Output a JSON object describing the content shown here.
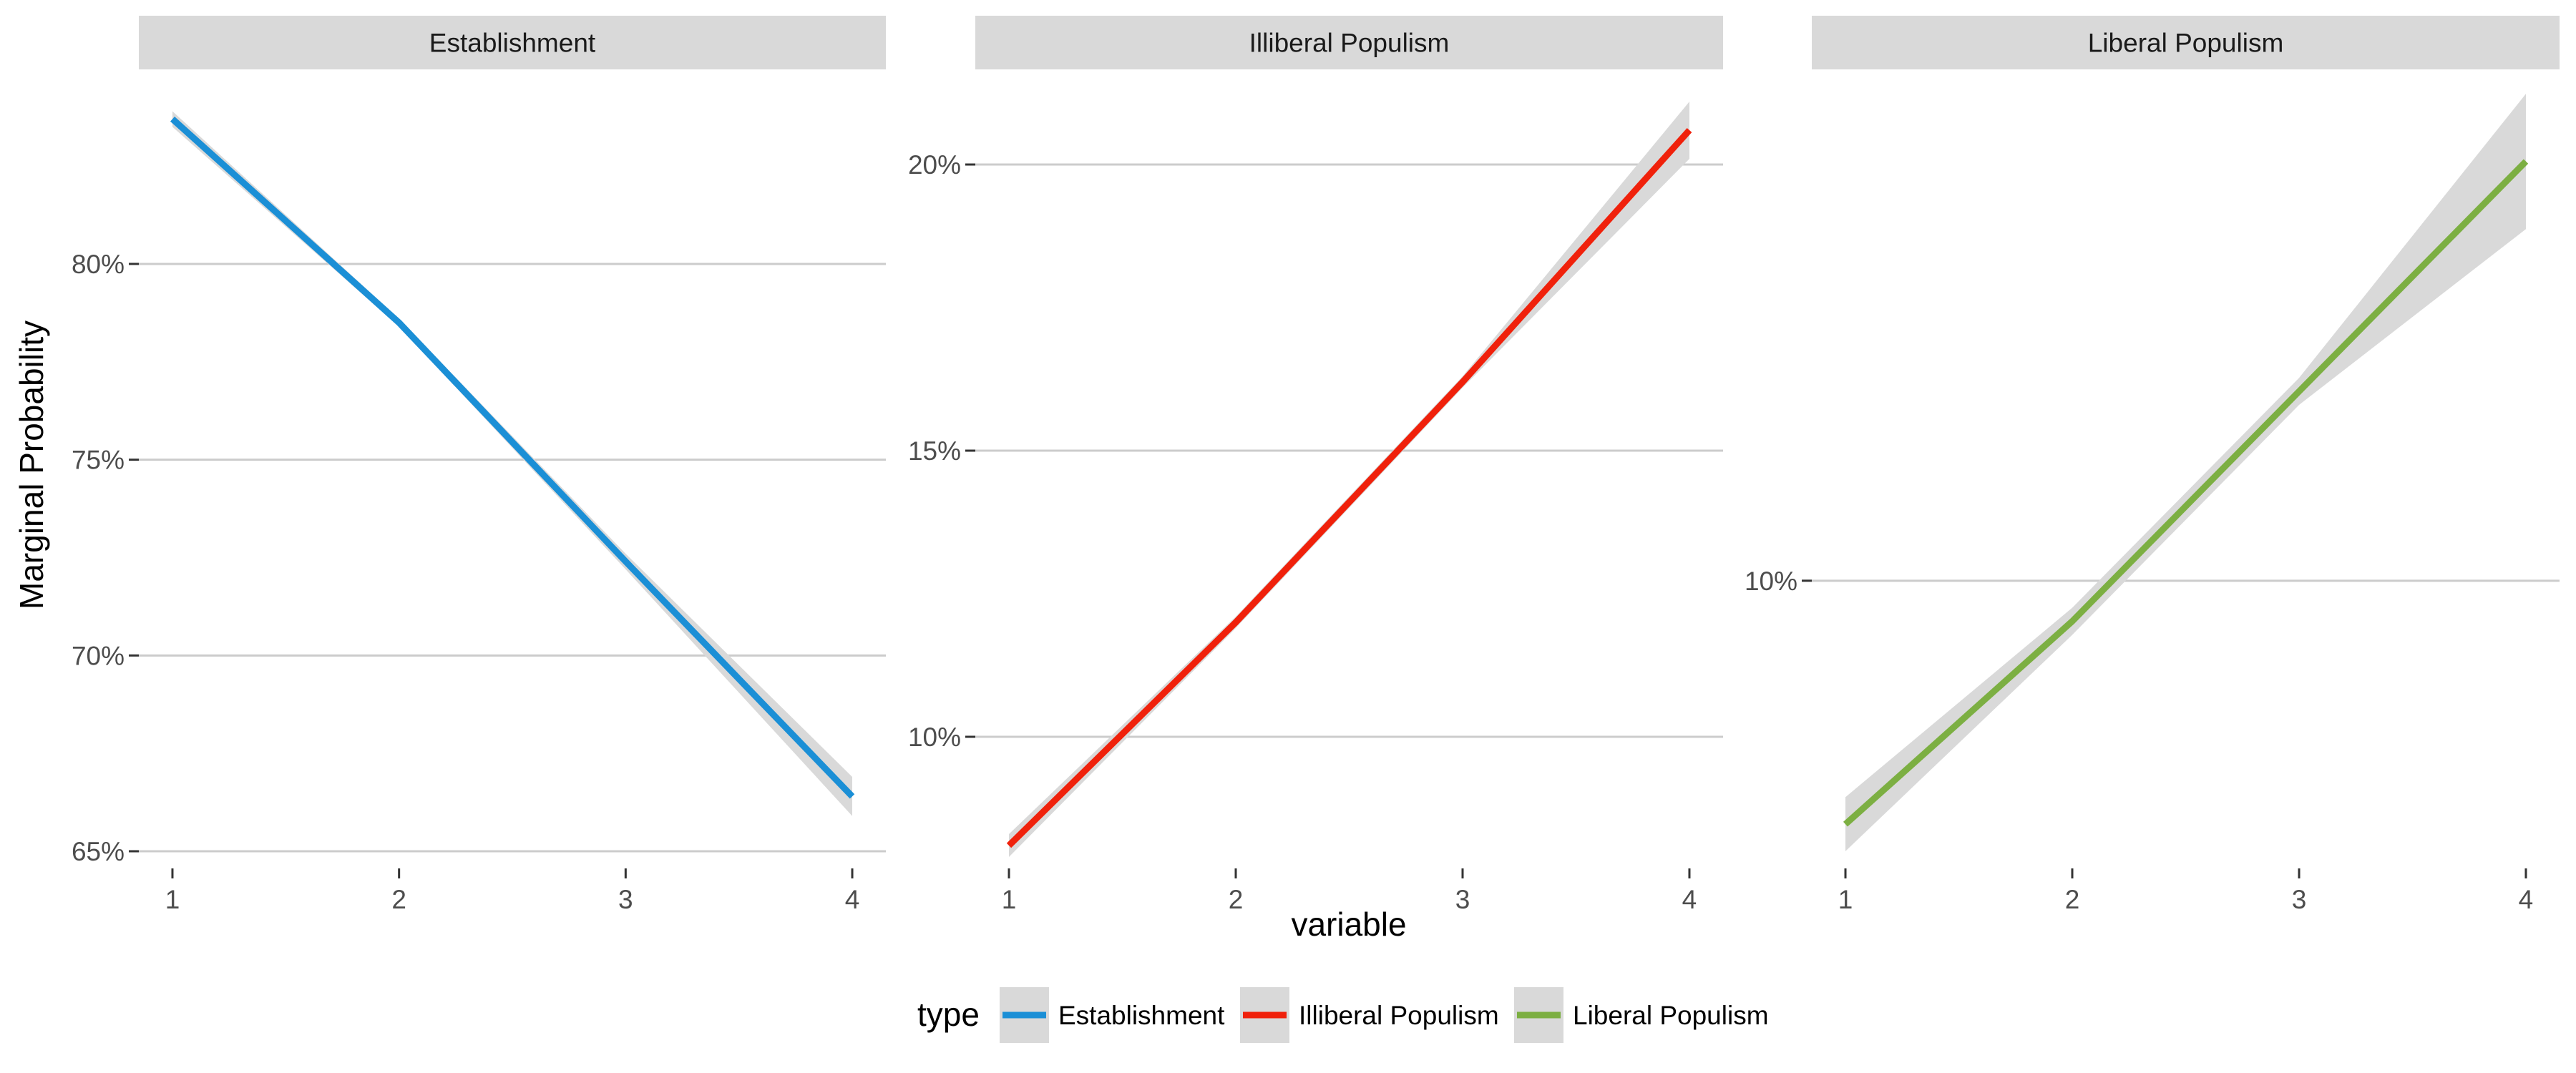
{
  "chart_data": [
    {
      "type": "line",
      "panel_title": "Establishment",
      "color": "#1B8FD6",
      "x": [
        1,
        2,
        3,
        4
      ],
      "y": [
        0.837,
        0.785,
        0.724,
        0.664
      ],
      "ci_lower": [
        0.835,
        0.784,
        0.722,
        0.659
      ],
      "ci_upper": [
        0.839,
        0.786,
        0.726,
        0.669
      ],
      "xlim": [
        1,
        4
      ],
      "ylim": [
        0.65,
        0.84
      ],
      "ytick_values": [
        0.65,
        0.7,
        0.75,
        0.8
      ],
      "ytick_labels": [
        "65%",
        "70%",
        "75%",
        "80%"
      ],
      "xtick_values": [
        1,
        2,
        3,
        4
      ],
      "xtick_labels": [
        "1",
        "2",
        "3",
        "4"
      ],
      "grid": true
    },
    {
      "type": "line",
      "panel_title": "Illiberal Populism",
      "color": "#F0210B",
      "x": [
        1,
        2,
        3,
        4
      ],
      "y": [
        0.081,
        0.12,
        0.162,
        0.206
      ],
      "ci_lower": [
        0.079,
        0.119,
        0.161,
        0.201
      ],
      "ci_upper": [
        0.083,
        0.121,
        0.163,
        0.211
      ],
      "xlim": [
        1,
        4
      ],
      "ylim": [
        0.08,
        0.21
      ],
      "ytick_values": [
        0.1,
        0.15,
        0.2
      ],
      "ytick_labels": [
        "10%",
        "15%",
        "20%"
      ],
      "xtick_values": [
        1,
        2,
        3,
        4
      ],
      "xtick_labels": [
        "1",
        "2",
        "3",
        "4"
      ],
      "grid": true
    },
    {
      "type": "line",
      "panel_title": "Liberal Populism",
      "color": "#7CAF42",
      "x": [
        1,
        2,
        3,
        4
      ],
      "y": [
        0.082,
        0.097,
        0.114,
        0.131
      ],
      "ci_lower": [
        0.08,
        0.096,
        0.113,
        0.126
      ],
      "ci_upper": [
        0.084,
        0.098,
        0.115,
        0.136
      ],
      "xlim": [
        1,
        4
      ],
      "ylim": [
        0.08,
        0.135
      ],
      "ytick_values": [
        0.1
      ],
      "ytick_labels": [
        "10%"
      ],
      "xtick_values": [
        1,
        2,
        3,
        4
      ],
      "xtick_labels": [
        "1",
        "2",
        "3",
        "4"
      ],
      "grid": true
    }
  ],
  "axes": {
    "xlabel": "variable",
    "ylabel": "Marginal Probability"
  },
  "legend": {
    "title": "type",
    "position": "bottom",
    "entries": [
      {
        "label": "Establishment",
        "color": "#1B8FD6"
      },
      {
        "label": "Illiberal Populism",
        "color": "#F0210B"
      },
      {
        "label": "Liberal Populism",
        "color": "#7CAF42"
      }
    ]
  },
  "theme": {
    "strip_fill": "#D9D9D9",
    "grid_color": "#CCCCCC",
    "ribbon_fill": "#D9D9D9",
    "tick_color": "#333333"
  }
}
